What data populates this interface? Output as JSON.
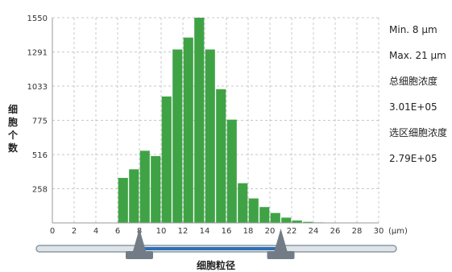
{
  "chart_data": {
    "type": "bar",
    "title": "",
    "xlabel": "细胞粒径",
    "ylabel": "细胞个数",
    "x_unit": "(μm)",
    "x_ticks": [
      0,
      2,
      4,
      6,
      8,
      10,
      12,
      14,
      16,
      18,
      20,
      22,
      24,
      26,
      28,
      30
    ],
    "y_ticks": [
      258,
      516,
      775,
      1033,
      1291,
      1550
    ],
    "xlim": [
      0,
      30
    ],
    "ylim": [
      0,
      1550
    ],
    "grid": true,
    "bar_width": 0.9,
    "color": "#3fa346",
    "series": [
      {
        "x": [
          6.5,
          7.5,
          8.5,
          9.5,
          10.5,
          11.5,
          12.5,
          13.5,
          14.5,
          15.5,
          16.5,
          17.5,
          18.5,
          19.5,
          20.5,
          21.5,
          22.5,
          23.5,
          24.5,
          25.5
        ],
        "values": [
          340,
          405,
          545,
          505,
          955,
          1310,
          1400,
          1550,
          1310,
          1010,
          780,
          300,
          185,
          120,
          75,
          40,
          18,
          8,
          4,
          2
        ]
      }
    ],
    "range_markers": [
      8,
      21
    ]
  },
  "stats": {
    "min": "Min. 8 μm",
    "max": "Max. 21 μm",
    "total_label": "总细胞浓度",
    "total_value": "3.01E+05",
    "selected_label": "选区细胞浓度",
    "selected_value": "2.79E+05"
  },
  "axis": {
    "ylabel_chars": [
      "细",
      "胞",
      "个",
      "数"
    ]
  },
  "colors": {
    "bar": "#3fa346",
    "grid": "#c8c8c8",
    "slider_track": "#8c9aa6",
    "slider_range": "#2f6fb2",
    "slider_handle": "#737c86"
  }
}
